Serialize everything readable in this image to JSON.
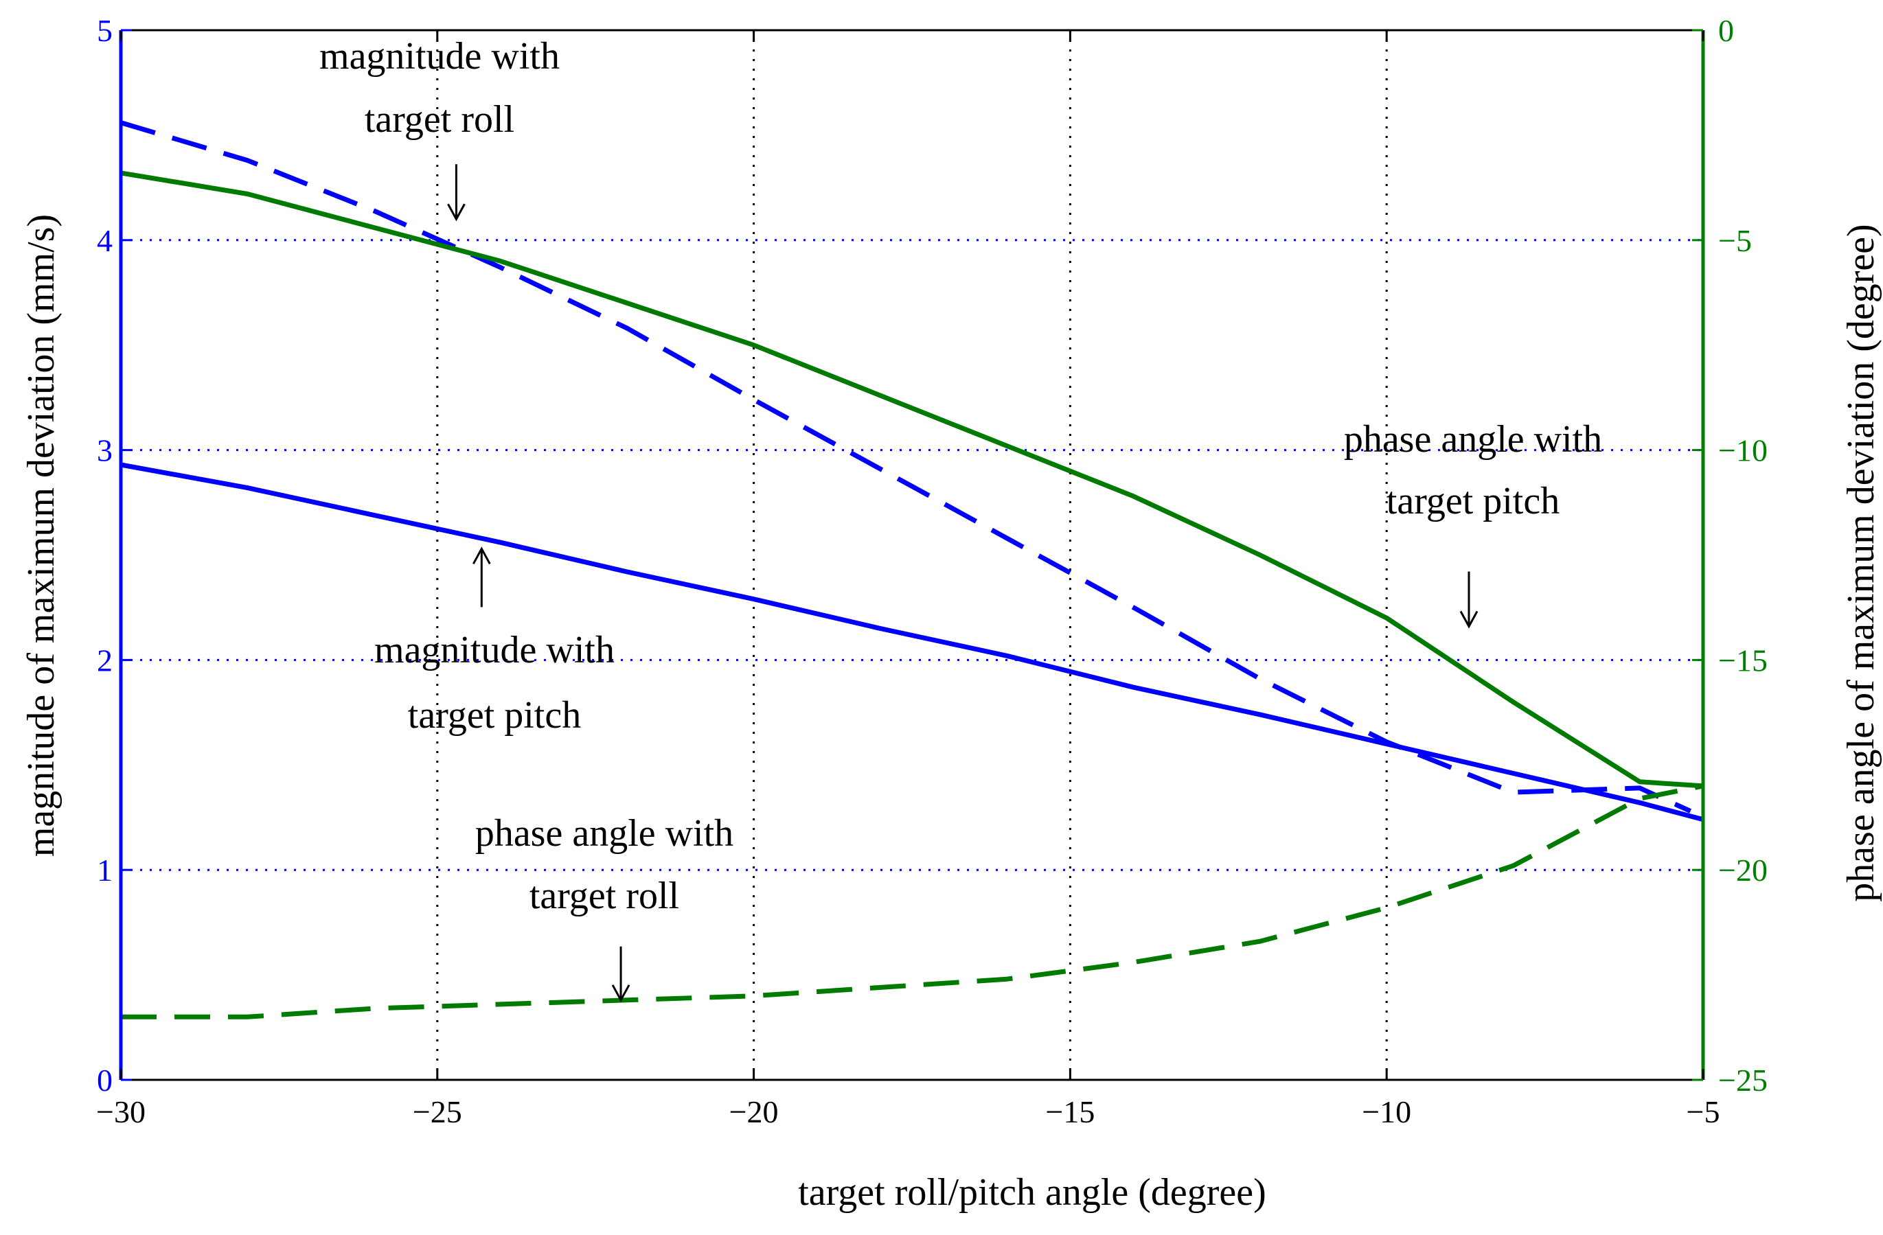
{
  "chart_data": {
    "type": "line",
    "title": "",
    "xlabel": "target roll/pitch angle (degree)",
    "ylabel_left": "magnitude  of maximum deviation (mm/s)",
    "ylabel_right": "phase angle of maximum deviation (degree)",
    "xlim": [
      -30,
      -5
    ],
    "ylim_left": [
      0,
      5
    ],
    "ylim_right": [
      -25,
      0
    ],
    "xticks": [
      -30,
      -25,
      -20,
      -15,
      -10,
      -5
    ],
    "xtick_labels": [
      "−30",
      "−25",
      "−20",
      "−15",
      "−10",
      "−5"
    ],
    "yticks_left": [
      0,
      1,
      2,
      3,
      4,
      5
    ],
    "ytick_labels_left": [
      "0",
      "1",
      "2",
      "3",
      "4",
      "5"
    ],
    "yticks_right": [
      -25,
      -20,
      -15,
      -10,
      -5,
      0
    ],
    "ytick_labels_right": [
      "−25",
      "−20",
      "−15",
      "−10",
      "−5",
      "0"
    ],
    "grid": true,
    "colors": {
      "left_axis": "#0000ff",
      "right_axis": "#008000",
      "magnitude": "#0000ff",
      "phase": "#007a00",
      "grid_vertical": "#000000",
      "grid_horizontal": "#0000ff"
    },
    "series": [
      {
        "name": "magnitude with target roll",
        "axis": "left",
        "style": "dashed",
        "color": "#0000ff",
        "x": [
          -30,
          -28,
          -26,
          -24,
          -22,
          -20,
          -18,
          -16,
          -14,
          -12,
          -10,
          -8,
          -6,
          -5.2
        ],
        "y": [
          4.56,
          4.38,
          4.14,
          3.87,
          3.58,
          3.24,
          2.91,
          2.58,
          2.25,
          1.91,
          1.61,
          1.37,
          1.39,
          1.28
        ]
      },
      {
        "name": "magnitude with target pitch",
        "axis": "left",
        "style": "solid",
        "color": "#0000ff",
        "x": [
          -30,
          -28,
          -26,
          -24,
          -22,
          -20,
          -18,
          -16,
          -14,
          -12,
          -10,
          -8,
          -6,
          -5
        ],
        "y": [
          2.93,
          2.82,
          2.69,
          2.56,
          2.42,
          2.29,
          2.15,
          2.02,
          1.87,
          1.74,
          1.6,
          1.46,
          1.32,
          1.24
        ]
      },
      {
        "name": "phase angle with target pitch",
        "axis": "right",
        "style": "solid",
        "color": "#007a00",
        "x": [
          -30,
          -28,
          -26,
          -24,
          -22,
          -20,
          -18,
          -16,
          -14,
          -12,
          -10,
          -8,
          -6,
          -5
        ],
        "y": [
          -3.4,
          -3.9,
          -4.7,
          -5.5,
          -6.5,
          -7.5,
          -8.7,
          -9.9,
          -11.1,
          -12.5,
          -14.0,
          -16.0,
          -17.9,
          -18.0
        ]
      },
      {
        "name": "phase angle with target roll",
        "axis": "right",
        "style": "dashed",
        "color": "#007a00",
        "x": [
          -30,
          -28,
          -26,
          -24,
          -22,
          -20,
          -18,
          -16,
          -14,
          -12,
          -10,
          -8,
          -6,
          -5
        ],
        "y": [
          -23.5,
          -23.5,
          -23.3,
          -23.2,
          -23.1,
          -23.0,
          -22.8,
          -22.6,
          -22.2,
          -21.7,
          -20.9,
          -19.9,
          -18.3,
          -18.0
        ]
      }
    ],
    "annotations": [
      {
        "lines": [
          "magnitude with",
          "target roll"
        ],
        "arrow_to": [
          -24.7,
          4.1
        ],
        "arrow_axis": "left"
      },
      {
        "lines": [
          "magnitude with",
          "target pitch"
        ],
        "arrow_to": [
          -24.3,
          2.53
        ],
        "arrow_axis": "left"
      },
      {
        "lines": [
          "phase angle with",
          "target pitch"
        ],
        "arrow_to": [
          -8.7,
          -14.2
        ],
        "arrow_axis": "right"
      },
      {
        "lines": [
          "phase angle with",
          "target roll"
        ],
        "arrow_to": [
          -22.1,
          -23.1
        ],
        "arrow_axis": "right"
      }
    ]
  }
}
